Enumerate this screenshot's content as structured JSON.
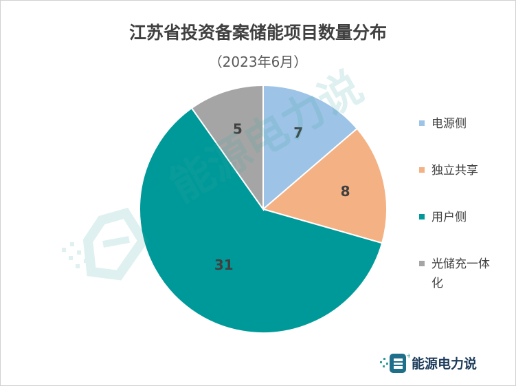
{
  "title": "江苏省投资备案储能项目数量分布",
  "subtitle": "（2023年6月）",
  "watermark": "能源电力说",
  "brand": {
    "name": "能源电力说"
  },
  "chart_data": {
    "type": "pie",
    "categories": [
      "电源侧",
      "独立共享",
      "用户侧",
      "光储充一体化"
    ],
    "values": [
      7,
      8,
      31,
      5
    ],
    "colors": [
      "#9dc3e6",
      "#f4b183",
      "#009999",
      "#a5a5a5"
    ],
    "data_labels": [
      "7",
      "8",
      "31",
      "5"
    ],
    "start_angle": "12 o'clock",
    "direction": "clockwise",
    "legend_position": "right"
  }
}
